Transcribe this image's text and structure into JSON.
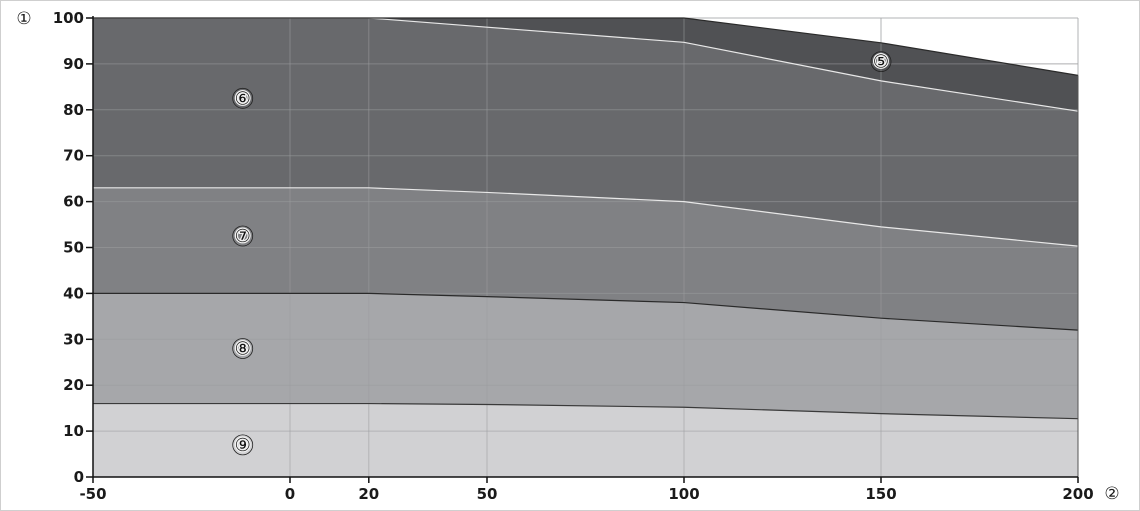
{
  "chart_data": {
    "type": "area",
    "title": "",
    "xlabel": "",
    "ylabel": "",
    "xlim": [
      -50,
      200
    ],
    "ylim": [
      0,
      100
    ],
    "x_ticks": [
      -50,
      0,
      20,
      50,
      100,
      150,
      200
    ],
    "x_tick_labels": [
      "-50",
      "0",
      "20",
      "50",
      "100",
      "150",
      "200"
    ],
    "y_ticks": [
      0,
      10,
      20,
      30,
      40,
      50,
      60,
      70,
      80,
      90,
      100
    ],
    "y_tick_labels": [
      "0",
      "10",
      "20",
      "30",
      "40",
      "50",
      "60",
      "70",
      "80",
      "90",
      "100"
    ],
    "grid": true,
    "y_axis_marker": "①",
    "x_axis_marker": "②",
    "boundaries": {
      "x": [
        -50,
        0,
        20,
        50,
        100,
        150,
        200
      ],
      "b9": [
        16,
        16,
        16,
        15.8,
        15.2,
        13.8,
        12.7
      ],
      "b8": [
        40,
        40,
        40,
        39.3,
        38,
        34.6,
        32
      ],
      "b7": [
        63,
        63,
        63,
        62,
        60,
        54.5,
        50.3
      ],
      "b6": [
        100,
        100,
        100,
        98,
        94.7,
        86.3,
        79.7
      ],
      "b5": [
        100,
        100,
        100,
        100,
        100,
        94.6,
        87.5
      ]
    },
    "series": [
      {
        "name": "⑨",
        "lower": "zero",
        "upper": "b9",
        "fill": "#d1d1d3",
        "line": "#3a3a3a",
        "label_x": -12,
        "label_y": 7
      },
      {
        "name": "⑧",
        "lower": "b9",
        "upper": "b8",
        "fill": "#a6a7aa",
        "line": "#2a2a2a",
        "label_x": -12,
        "label_y": 28
      },
      {
        "name": "⑦",
        "lower": "b8",
        "upper": "b7",
        "fill": "#808184",
        "line": "#e8e8e8",
        "label_x": -12,
        "label_y": 52.5
      },
      {
        "name": "⑥",
        "lower": "b7",
        "upper": "b6",
        "fill": "#68696c",
        "line": "#e8e8e8",
        "label_x": -12,
        "label_y": 82.5
      },
      {
        "name": "⑤",
        "lower": "b6",
        "upper": "b5",
        "fill": "#505154",
        "line": "#2a2a2a",
        "label_x": 150,
        "label_y": 90.5
      }
    ],
    "colors": {
      "axis": "#111111",
      "grid_on_area": "#9b9c9f",
      "grid_on_white": "#cfcfcf",
      "frame": "#cfcfcf"
    }
  }
}
